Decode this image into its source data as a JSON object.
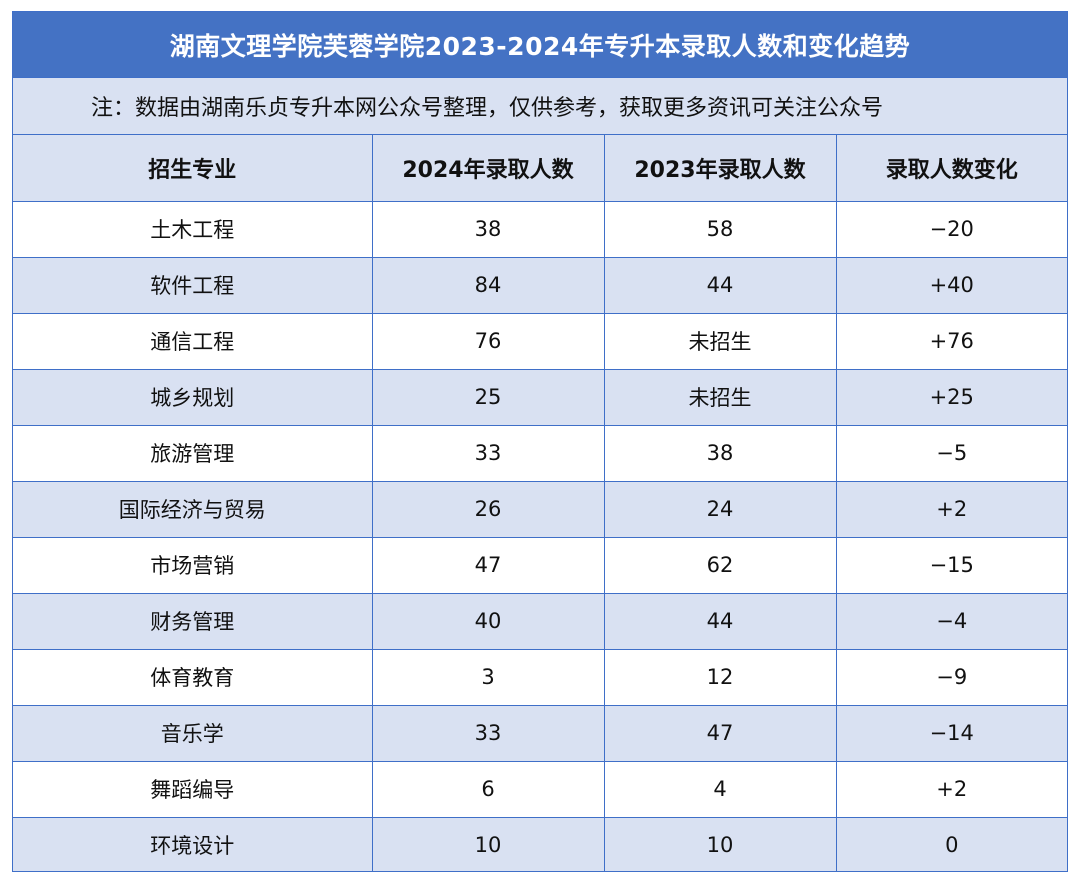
{
  "title": "湖南文理学院芙蓉学院2023-2024年专升本录取人数和变化趋势",
  "note": "注：数据由湖南乐贞专升本网公众号整理，仅供参考，获取更多资讯可关注公众号",
  "columns": [
    "招生专业",
    "2024年录取人数",
    "2023年录取人数",
    "录取人数变化"
  ],
  "rows": [
    [
      "土木工程",
      "38",
      "58",
      "−20"
    ],
    [
      "软件工程",
      "84",
      "44",
      "+40"
    ],
    [
      "通信工程",
      "76",
      "未招生",
      "+76"
    ],
    [
      "城乡规划",
      "25",
      "未招生",
      "+25"
    ],
    [
      "旅游管理",
      "33",
      "38",
      "−5"
    ],
    [
      "国际经济与贸易",
      "26",
      "24",
      "+2"
    ],
    [
      "市场营销",
      "47",
      "62",
      "−15"
    ],
    [
      "财务管理",
      "40",
      "44",
      "−4"
    ],
    [
      "体育教育",
      "3",
      "12",
      "−9"
    ],
    [
      "音乐学",
      "33",
      "47",
      "−14"
    ],
    [
      "舞蹈编导",
      "6",
      "4",
      "+2"
    ],
    [
      "环境设计",
      "10",
      "10",
      "0"
    ]
  ],
  "colors": {
    "header_blue": "#4472c4",
    "stripe_light_blue": "#d9e1f2",
    "border": "#3f6fc8"
  }
}
